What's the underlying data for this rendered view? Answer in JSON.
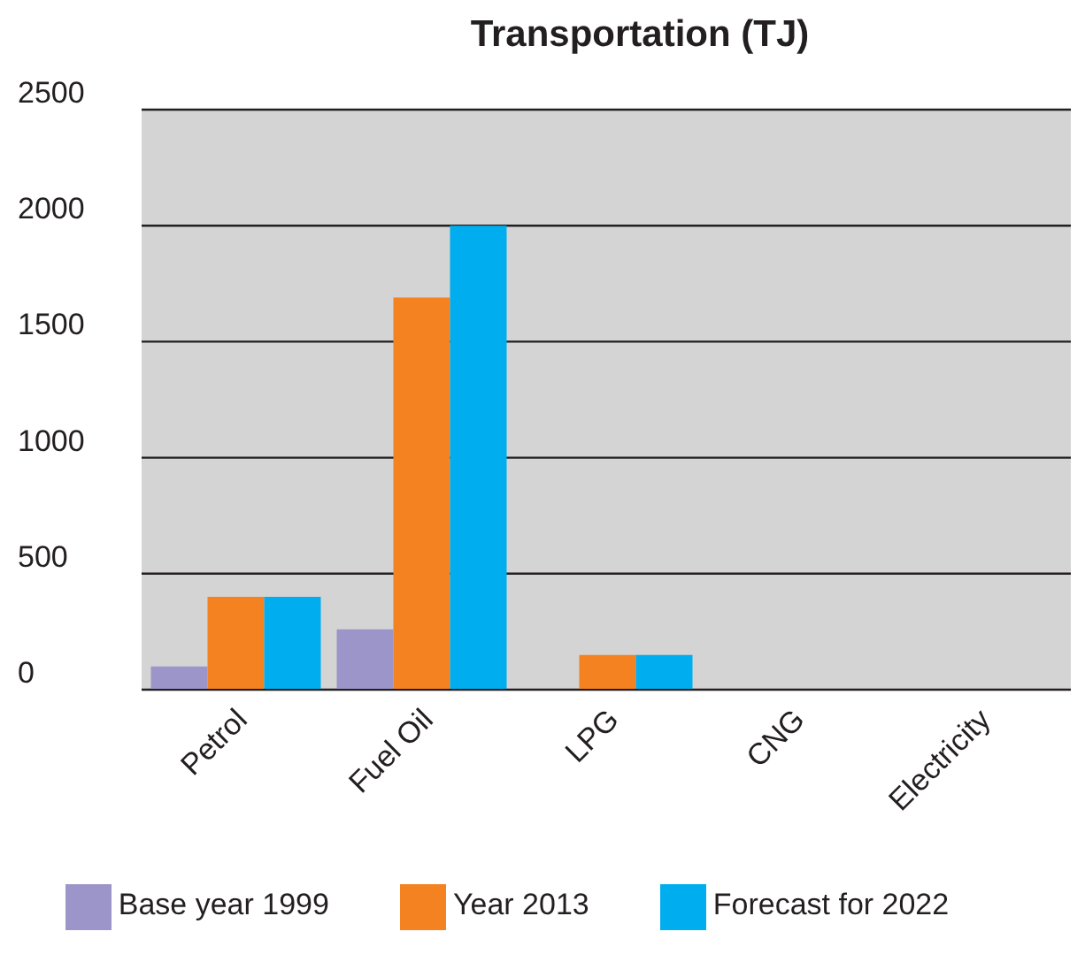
{
  "chart_data": {
    "type": "bar",
    "title": "Transportation (TJ)",
    "categories": [
      "Petrol",
      "Fuel Oil",
      "LPG",
      "CNG",
      "Electricity"
    ],
    "series": [
      {
        "name": "Base year 1999",
        "color": "#9b95c9",
        "values": [
          100,
          260,
          0,
          0,
          0
        ]
      },
      {
        "name": "Year 2013",
        "color": "#f58220",
        "values": [
          400,
          1690,
          150,
          0,
          0
        ]
      },
      {
        "name": "Forecast for 2022",
        "color": "#00aeef",
        "values": [
          400,
          2000,
          150,
          0,
          0
        ]
      }
    ],
    "ylim": [
      0,
      2500
    ],
    "yticks": [
      0,
      500,
      1000,
      1500,
      2000,
      2500
    ],
    "grid": "y",
    "legend": "bottom"
  }
}
